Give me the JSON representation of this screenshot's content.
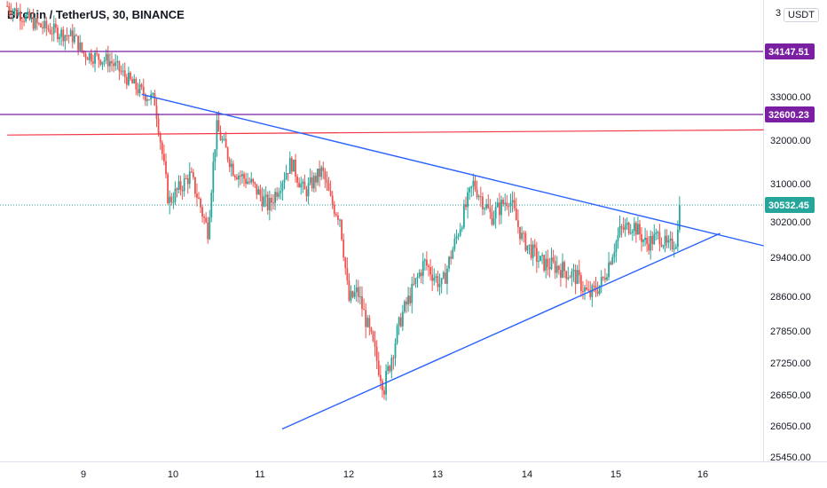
{
  "header": {
    "title": "Bitcoin / TetherUS, 30, BINANCE",
    "currency": "USDT",
    "top_tick": "3"
  },
  "colors": {
    "up": "#26a69a",
    "down": "#ef5350",
    "trend": "#2962ff",
    "resistance": "#7b1fa2",
    "red_line": "#f23645",
    "current": "#26a69a"
  },
  "chart_data": {
    "type": "candlestick",
    "pair": "BTC/USDT",
    "interval": "30",
    "exchange": "BINANCE",
    "ylim": [
      25300,
      35300
    ],
    "xlim": [
      8.15,
      16.7
    ],
    "y_ticks": [
      "33000.00",
      "32000.00",
      "31000.00",
      "30200.00",
      "29400.00",
      "28600.00",
      "27850.00",
      "27250.00",
      "26650.00",
      "26050.00",
      "25450.00"
    ],
    "x_ticks": [
      {
        "label": "9",
        "day": 9
      },
      {
        "label": "10",
        "day": 10
      },
      {
        "label": "11",
        "day": 11
      },
      {
        "label": "12",
        "day": 12
      },
      {
        "label": "13",
        "day": 13
      },
      {
        "label": "14",
        "day": 14
      },
      {
        "label": "15",
        "day": 15
      },
      {
        "label": "16",
        "day": 16
      }
    ],
    "horizontal_levels": [
      {
        "value": 34147.51,
        "label": "34147.51",
        "color": "resistance"
      },
      {
        "value": 32600.23,
        "label": "32600.23",
        "color": "resistance"
      }
    ],
    "red_line": {
      "from": {
        "day": 8.15,
        "value": 32120
      },
      "to": {
        "day": 16.7,
        "value": 32240
      }
    },
    "current_price": {
      "value": 30532.45,
      "label": "30532.45"
    },
    "trendlines": [
      {
        "from": {
          "day": 9.65,
          "value": 33060
        },
        "to": {
          "day": 16.7,
          "value": 29660
        }
      },
      {
        "from": {
          "day": 11.25,
          "value": 25990
        },
        "to": {
          "day": 16.2,
          "value": 29940
        }
      }
    ],
    "price_path": [
      [
        8.15,
        35300
      ],
      [
        8.5,
        34800
      ],
      [
        8.9,
        34500
      ],
      [
        9.0,
        34100
      ],
      [
        9.3,
        33900
      ],
      [
        9.6,
        33200
      ],
      [
        9.8,
        32900
      ],
      [
        9.95,
        30600
      ],
      [
        10.2,
        31200
      ],
      [
        10.4,
        30000
      ],
      [
        10.5,
        32300
      ],
      [
        10.7,
        31300
      ],
      [
        10.9,
        31000
      ],
      [
        11.1,
        30500
      ],
      [
        11.35,
        31500
      ],
      [
        11.5,
        30800
      ],
      [
        11.7,
        31300
      ],
      [
        11.8,
        30600
      ],
      [
        11.9,
        30300
      ],
      [
        12.0,
        28500
      ],
      [
        12.1,
        28700
      ],
      [
        12.25,
        27700
      ],
      [
        12.4,
        26800
      ],
      [
        12.6,
        28200
      ],
      [
        12.85,
        29300
      ],
      [
        13.05,
        28800
      ],
      [
        13.25,
        30100
      ],
      [
        13.4,
        31000
      ],
      [
        13.6,
        30300
      ],
      [
        13.8,
        30700
      ],
      [
        13.95,
        29800
      ],
      [
        14.15,
        29300
      ],
      [
        14.35,
        29200
      ],
      [
        14.55,
        29000
      ],
      [
        14.7,
        28600
      ],
      [
        14.85,
        28900
      ],
      [
        15.05,
        30000
      ],
      [
        15.2,
        30150
      ],
      [
        15.35,
        29700
      ],
      [
        15.5,
        29900
      ],
      [
        15.6,
        29600
      ],
      [
        15.7,
        29800
      ],
      [
        15.75,
        30532
      ]
    ]
  }
}
